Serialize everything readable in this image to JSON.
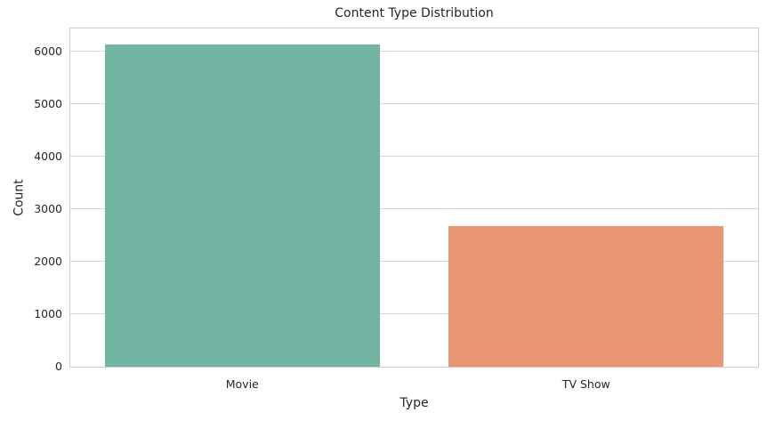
{
  "chart_data": {
    "type": "bar",
    "title": "Content Type Distribution",
    "xlabel": "Type",
    "ylabel": "Count",
    "categories": [
      "Movie",
      "TV Show"
    ],
    "values": [
      6131,
      2676
    ],
    "bar_colors": [
      "#71b5a2",
      "#e99675"
    ],
    "ylim": [
      0,
      6437
    ],
    "yticks": [
      0,
      1000,
      2000,
      3000,
      4000,
      5000,
      6000
    ],
    "grid": "horizontal",
    "legend": "none"
  },
  "style": {
    "background": "#ffffff",
    "grid_color": "#d8d8d8",
    "spine_color": "#cccccc",
    "text_color": "#262626"
  }
}
